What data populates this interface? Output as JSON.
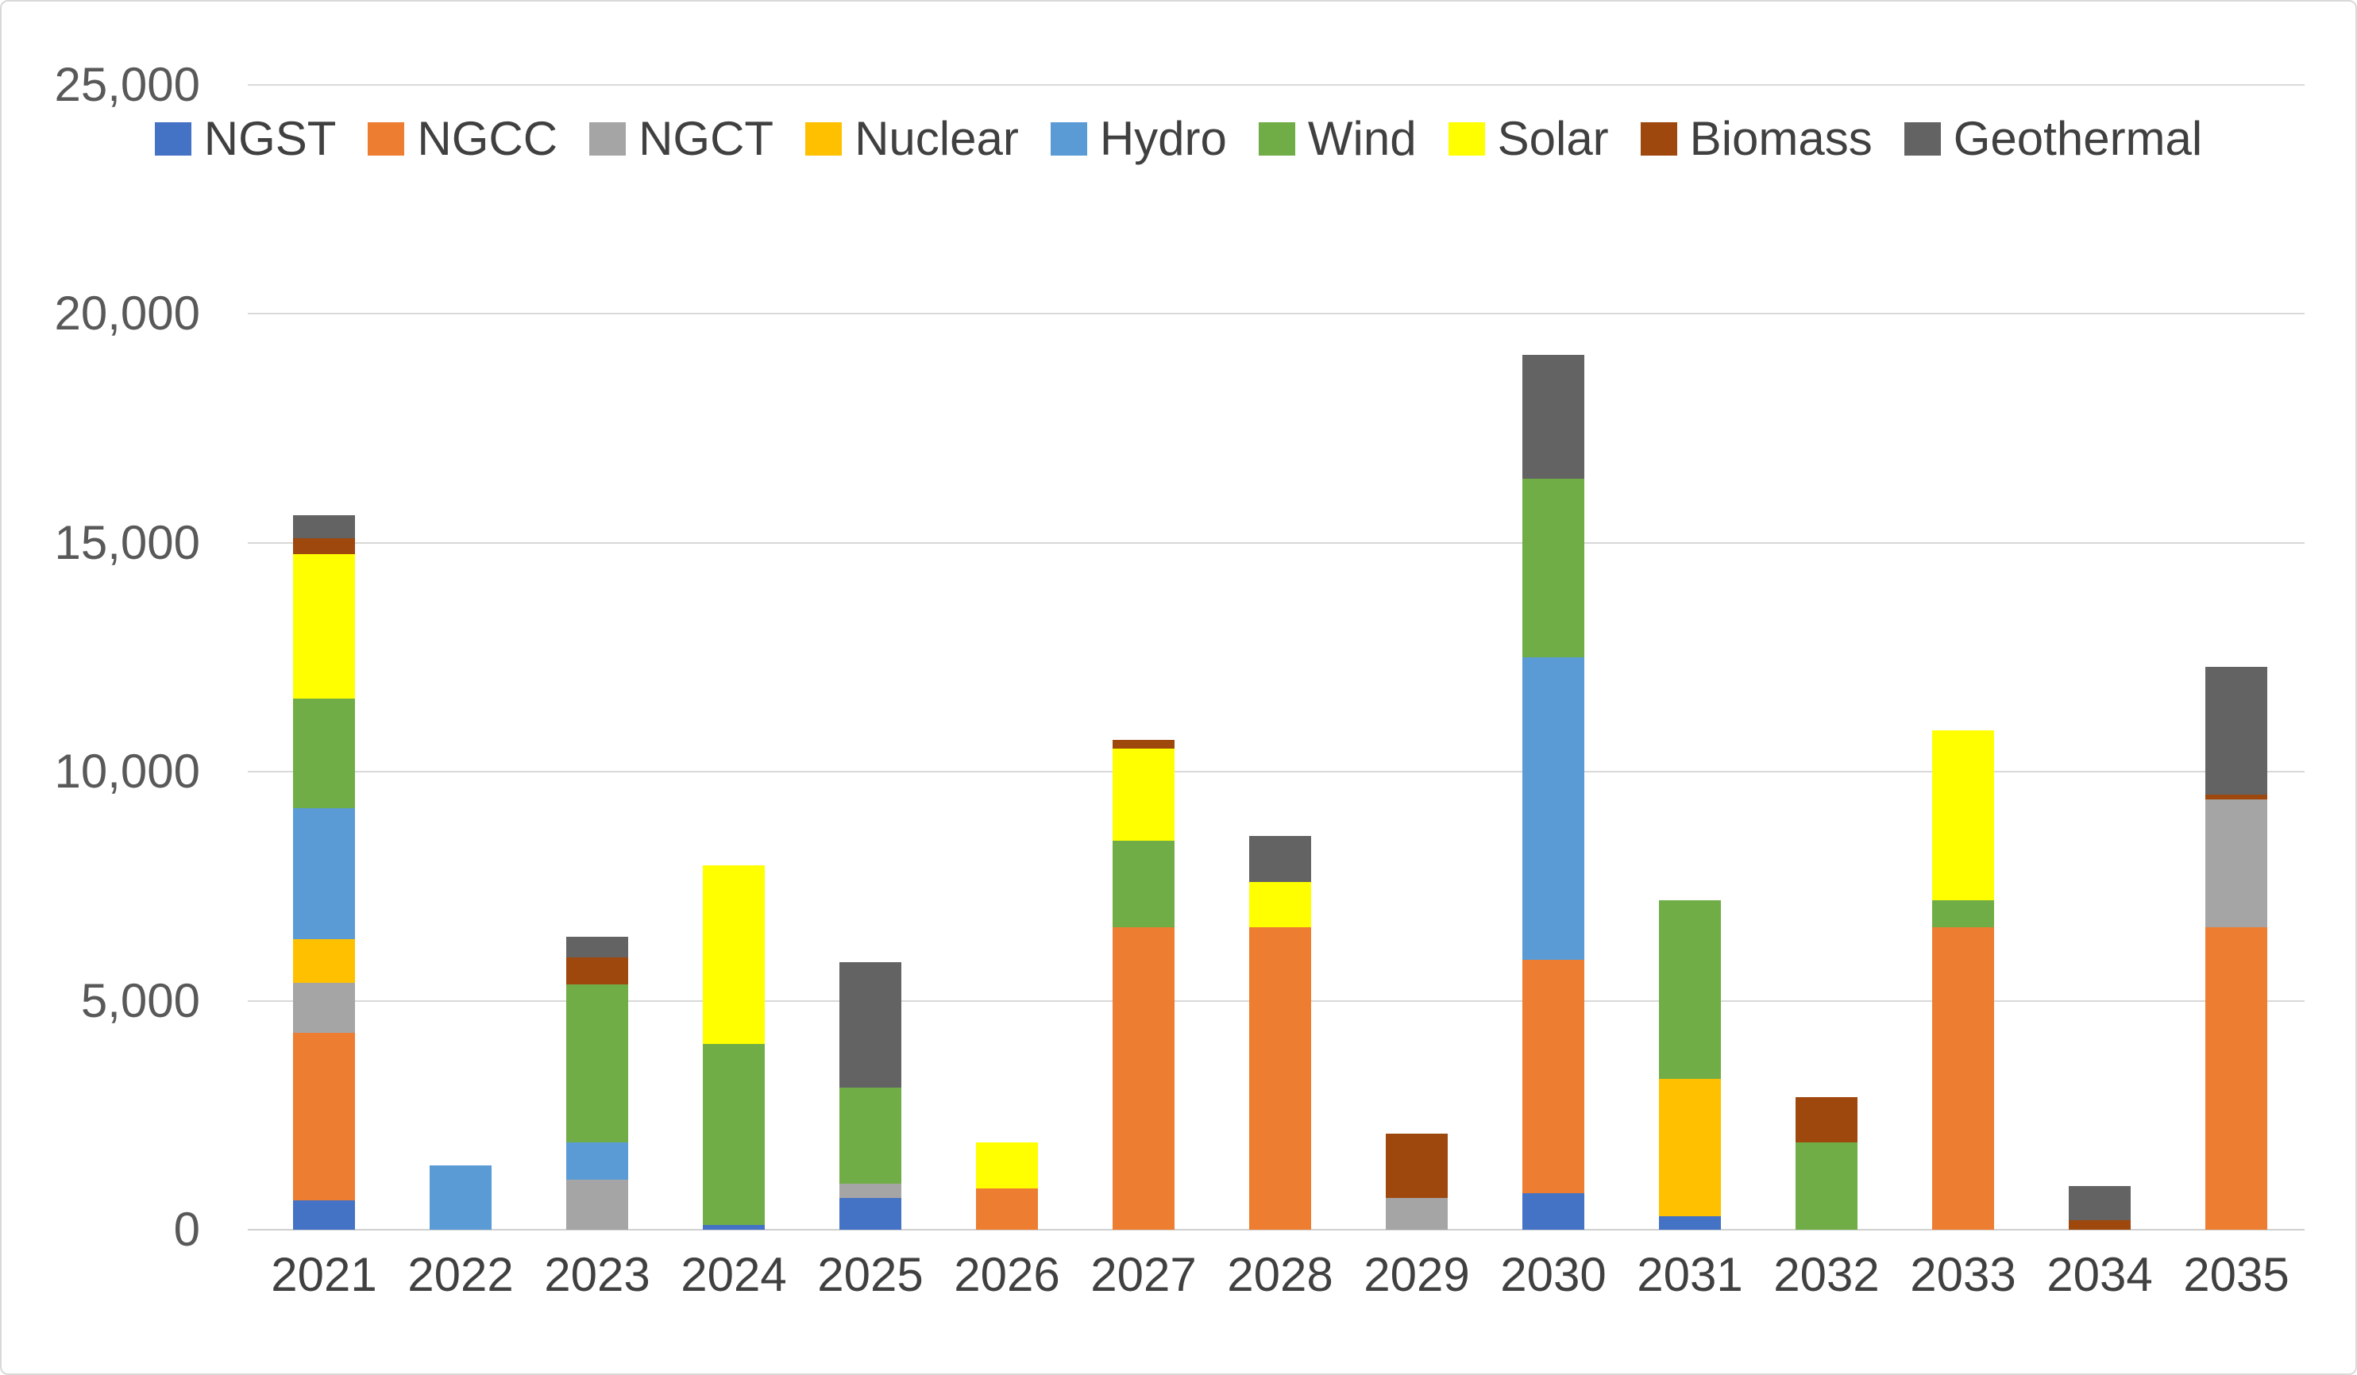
{
  "chart_data": {
    "type": "bar",
    "stacked": true,
    "title": "",
    "xlabel": "",
    "ylabel": "",
    "grid": true,
    "legend_position": "top",
    "categories": [
      "2021",
      "2022",
      "2023",
      "2024",
      "2025",
      "2026",
      "2027",
      "2028",
      "2029",
      "2030",
      "2031",
      "2032",
      "2033",
      "2034",
      "2035"
    ],
    "series": [
      {
        "name": "NGST",
        "color": "#4472C4",
        "values": [
          650,
          0,
          0,
          100,
          700,
          0,
          0,
          0,
          0,
          800,
          300,
          0,
          0,
          0,
          0
        ]
      },
      {
        "name": "NGCC",
        "color": "#ED7D31",
        "values": [
          3650,
          0,
          0,
          0,
          0,
          900,
          6600,
          6600,
          0,
          5100,
          0,
          0,
          6600,
          0,
          6600
        ]
      },
      {
        "name": "NGCT",
        "color": "#A5A5A5",
        "values": [
          1100,
          0,
          1100,
          0,
          300,
          0,
          0,
          0,
          700,
          0,
          0,
          0,
          0,
          0,
          2800
        ]
      },
      {
        "name": "Nuclear",
        "color": "#FFC000",
        "values": [
          950,
          0,
          0,
          0,
          0,
          0,
          0,
          0,
          0,
          0,
          3000,
          0,
          0,
          0,
          0
        ]
      },
      {
        "name": "Hydro",
        "color": "#5B9BD5",
        "values": [
          2850,
          1400,
          800,
          0,
          0,
          0,
          0,
          0,
          0,
          6600,
          0,
          0,
          0,
          0,
          0
        ]
      },
      {
        "name": "Wind",
        "color": "#70AD47",
        "values": [
          2400,
          0,
          3450,
          3950,
          2100,
          0,
          1900,
          0,
          0,
          3900,
          3900,
          1900,
          600,
          0,
          0
        ]
      },
      {
        "name": "Solar",
        "color": "#FFFF00",
        "values": [
          3150,
          0,
          0,
          3900,
          0,
          1000,
          2000,
          1000,
          0,
          0,
          0,
          0,
          3700,
          0,
          0
        ]
      },
      {
        "name": "Biomass",
        "color": "#9E480E",
        "values": [
          350,
          0,
          600,
          0,
          0,
          0,
          200,
          0,
          1400,
          0,
          0,
          1000,
          0,
          200,
          100
        ]
      },
      {
        "name": "Geothermal",
        "color": "#636363",
        "values": [
          500,
          0,
          450,
          0,
          2750,
          0,
          0,
          1000,
          0,
          2700,
          0,
          0,
          0,
          750,
          2800
        ]
      }
    ],
    "y_axis": {
      "min": 0,
      "max": 25000,
      "step": 5000,
      "tick_labels": [
        "0",
        "5,000",
        "10,000",
        "15,000",
        "20,000",
        "25,000"
      ]
    }
  }
}
